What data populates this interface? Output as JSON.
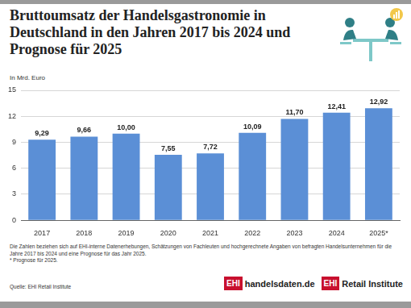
{
  "chart_data": {
    "type": "bar",
    "title": "Bruttoumsatz der Handelsgastronomie in Deutschland in den Jahren 2017 bis 2024 und Prognose für 2025",
    "subtitle": "In Mrd. Euro",
    "categories": [
      "2017",
      "2018",
      "2019",
      "2020",
      "2021",
      "2022",
      "2023",
      "2024",
      "2025*"
    ],
    "values": [
      9.29,
      9.66,
      10.0,
      7.55,
      7.72,
      10.09,
      11.7,
      12.41,
      12.92
    ],
    "value_labels": [
      "9,29",
      "9,66",
      "10,00",
      "7,55",
      "7,72",
      "10,09",
      "11,70",
      "12,41",
      "12,92"
    ],
    "data_labels": true,
    "color": "#5b8fd6",
    "ylim": [
      0,
      15
    ],
    "yticks": [
      0,
      3,
      6,
      9,
      12,
      15
    ],
    "grid": true,
    "notes": [
      "Die Zahlen beziehen sich auf EHI-interne Datenerhebungen, Schätzungen von Fachleuten und hochgerechnete Angaben von befragten Handelsunternehmen für die Jahre 2017 bis 2024 und eine Prognose für das Jahr 2025.",
      "* Prognose für 2025."
    ],
    "source": "Quelle: EHI Retail Institute",
    "logos": [
      {
        "mark": "EHI",
        "text": "handelsdaten.de"
      },
      {
        "mark": "EHI",
        "text": "Retail Institute"
      }
    ]
  }
}
